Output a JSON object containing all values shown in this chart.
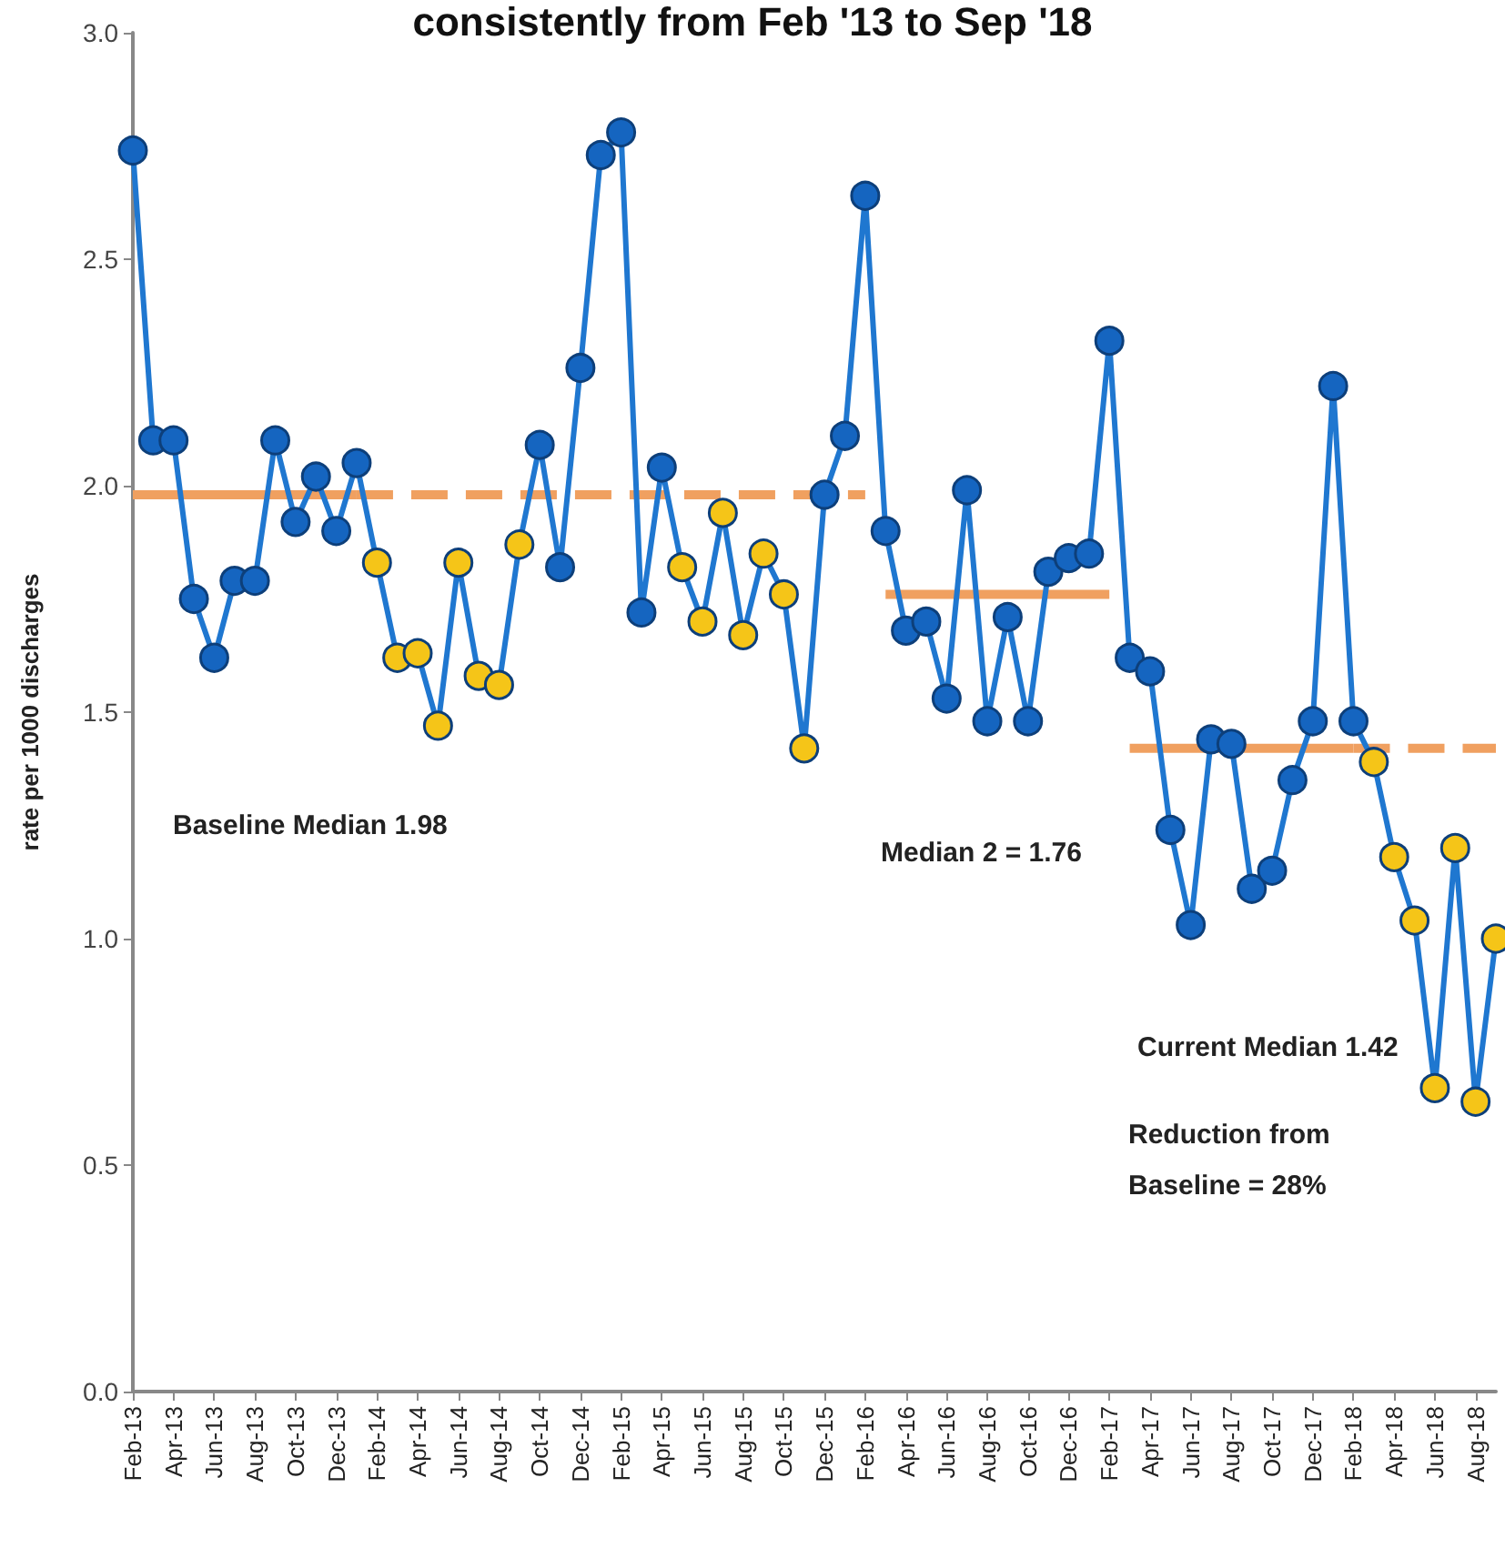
{
  "chart_data": {
    "type": "line",
    "title": "consistently from Feb '13 to Sep '18",
    "ylabel": "rate per 1000 discharges",
    "categories": [
      "Feb-13",
      null,
      "Apr-13",
      null,
      "Jun-13",
      null,
      "Aug-13",
      null,
      "Oct-13",
      null,
      "Dec-13",
      null,
      "Feb-14",
      null,
      "Apr-14",
      null,
      "Jun-14",
      null,
      "Aug-14",
      null,
      "Oct-14",
      null,
      "Dec-14",
      null,
      "Feb-15",
      null,
      "Apr-15",
      null,
      "Jun-15",
      null,
      "Aug-15",
      null,
      "Oct-15",
      null,
      "Dec-15",
      null,
      "Feb-16",
      null,
      "Apr-16",
      null,
      "Jun-16",
      null,
      "Aug-16",
      null,
      "Oct-16",
      null,
      "Dec-16",
      null,
      "Feb-17",
      null,
      "Apr-17",
      null,
      "Jun-17",
      null,
      "Aug-17",
      null,
      "Oct-17",
      null,
      "Dec-17",
      null,
      "Feb-18",
      null,
      "Apr-18",
      null,
      "Jun-18",
      null,
      "Aug-18",
      null
    ],
    "series": [
      {
        "color": "#1f77d0",
        "marker": "circle",
        "values": [
          2.74,
          2.1,
          2.1,
          1.75,
          1.62,
          1.79,
          1.79,
          2.1,
          1.92,
          2.02,
          1.9,
          2.05,
          1.83,
          1.62,
          1.63,
          1.47,
          1.83,
          1.58,
          1.56,
          1.87,
          2.09,
          1.82,
          2.26,
          2.73,
          2.78,
          1.72,
          2.04,
          1.82,
          1.7,
          1.94,
          1.67,
          1.85,
          1.76,
          1.42,
          1.98,
          2.11,
          2.64,
          1.9,
          1.68,
          1.7,
          1.53,
          1.99,
          1.48,
          1.71,
          1.48,
          1.81,
          1.84,
          1.85,
          2.32,
          1.62,
          1.59,
          1.24,
          1.03,
          1.44,
          1.43,
          1.11,
          1.15,
          1.35,
          1.48,
          2.22,
          1.48,
          1.39,
          1.18,
          1.04,
          0.67,
          1.2,
          0.64,
          1.0
        ],
        "colors": [
          "#1565c0",
          "#1565c0",
          "#1565c0",
          "#1565c0",
          "#1565c0",
          "#1565c0",
          "#1565c0",
          "#1565c0",
          "#1565c0",
          "#1565c0",
          "#1565c0",
          "#1565c0",
          "#f5c518",
          "#f5c518",
          "#f5c518",
          "#f5c518",
          "#f5c518",
          "#f5c518",
          "#f5c518",
          "#f5c518",
          "#1565c0",
          "#1565c0",
          "#1565c0",
          "#1565c0",
          "#1565c0",
          "#1565c0",
          "#1565c0",
          "#f5c518",
          "#f5c518",
          "#f5c518",
          "#f5c518",
          "#f5c518",
          "#f5c518",
          "#f5c518",
          "#1565c0",
          "#1565c0",
          "#1565c0",
          "#1565c0",
          "#1565c0",
          "#1565c0",
          "#1565c0",
          "#1565c0",
          "#1565c0",
          "#1565c0",
          "#1565c0",
          "#1565c0",
          "#1565c0",
          "#1565c0",
          "#1565c0",
          "#1565c0",
          "#1565c0",
          "#1565c0",
          "#1565c0",
          "#1565c0",
          "#1565c0",
          "#1565c0",
          "#1565c0",
          "#1565c0",
          "#1565c0",
          "#1565c0",
          "#1565c0",
          "#f5c518",
          "#f5c518",
          "#f5c518",
          "#f5c518",
          "#f5c518",
          "#f5c518",
          "#f5c518"
        ]
      },
      {
        "type": "line",
        "color": "#f0a060",
        "marker": "none",
        "line_style": "solid",
        "values": [
          1.98,
          1.98,
          1.98,
          1.98,
          1.98,
          1.98,
          1.98,
          1.98,
          1.98,
          1.98,
          1.98,
          1.98,
          null,
          null,
          null,
          null,
          null,
          null,
          null,
          null,
          null,
          null,
          null,
          null,
          null,
          null,
          null,
          null,
          null,
          null,
          null,
          null,
          null,
          null,
          null,
          null,
          null,
          null,
          null,
          null,
          null,
          null,
          null,
          null,
          null,
          null,
          null,
          null,
          null,
          null,
          null,
          null,
          null,
          null,
          null,
          null,
          null,
          null,
          null,
          null,
          null,
          null,
          null,
          null,
          null,
          null,
          null,
          null
        ]
      },
      {
        "type": "line",
        "color": "#f0a060",
        "marker": "none",
        "line_style": "dashed",
        "values": [
          null,
          null,
          null,
          null,
          null,
          null,
          null,
          null,
          null,
          null,
          null,
          1.98,
          1.98,
          1.98,
          1.98,
          1.98,
          1.98,
          1.98,
          1.98,
          1.98,
          1.98,
          1.98,
          1.98,
          1.98,
          1.98,
          1.98,
          1.98,
          1.98,
          1.98,
          1.98,
          1.98,
          1.98,
          1.98,
          1.98,
          1.98,
          1.98,
          1.98,
          null,
          null,
          null,
          null,
          null,
          null,
          null,
          null,
          null,
          null,
          null,
          null,
          null,
          null,
          null,
          null,
          null,
          null,
          null,
          null,
          null,
          null,
          null,
          null,
          null,
          null,
          null,
          null,
          null,
          null,
          null
        ]
      },
      {
        "type": "line",
        "color": "#f0a060",
        "marker": "none",
        "line_style": "solid",
        "values": [
          null,
          null,
          null,
          null,
          null,
          null,
          null,
          null,
          null,
          null,
          null,
          null,
          null,
          null,
          null,
          null,
          null,
          null,
          null,
          null,
          null,
          null,
          null,
          null,
          null,
          null,
          null,
          null,
          null,
          null,
          null,
          null,
          null,
          null,
          null,
          null,
          null,
          1.76,
          1.76,
          1.76,
          1.76,
          1.76,
          1.76,
          1.76,
          1.76,
          1.76,
          1.76,
          1.76,
          1.76,
          null,
          null,
          null,
          null,
          null,
          null,
          null,
          null,
          null,
          null,
          null,
          null,
          null,
          null,
          null,
          null,
          null,
          null,
          null
        ]
      },
      {
        "type": "line",
        "color": "#f0a060",
        "marker": "none",
        "line_style": "solid",
        "values": [
          null,
          null,
          null,
          null,
          null,
          null,
          null,
          null,
          null,
          null,
          null,
          null,
          null,
          null,
          null,
          null,
          null,
          null,
          null,
          null,
          null,
          null,
          null,
          null,
          null,
          null,
          null,
          null,
          null,
          null,
          null,
          null,
          null,
          null,
          null,
          null,
          null,
          null,
          null,
          null,
          null,
          null,
          null,
          null,
          null,
          null,
          null,
          null,
          null,
          1.42,
          1.42,
          1.42,
          1.42,
          1.42,
          1.42,
          1.42,
          1.42,
          1.42,
          1.42,
          1.42,
          1.42,
          null,
          null,
          null,
          null,
          null,
          null,
          null
        ]
      },
      {
        "type": "line",
        "color": "#f0a060",
        "marker": "none",
        "line_style": "dashed",
        "values": [
          null,
          null,
          null,
          null,
          null,
          null,
          null,
          null,
          null,
          null,
          null,
          null,
          null,
          null,
          null,
          null,
          null,
          null,
          null,
          null,
          null,
          null,
          null,
          null,
          null,
          null,
          null,
          null,
          null,
          null,
          null,
          null,
          null,
          null,
          null,
          null,
          null,
          null,
          null,
          null,
          null,
          null,
          null,
          null,
          null,
          null,
          null,
          null,
          null,
          null,
          null,
          null,
          null,
          null,
          null,
          null,
          null,
          null,
          null,
          null,
          1.42,
          1.42,
          1.42,
          1.42,
          1.42,
          1.42,
          1.42,
          1.42
        ]
      }
    ],
    "ylim": [
      0,
      3
    ],
    "yticks": [
      {
        "value": 0,
        "label": "0.0"
      },
      0.5,
      {
        "value": 1,
        "label": "1.0"
      },
      1.5,
      {
        "value": 2,
        "label": "2.0"
      },
      2.5,
      {
        "value": 3,
        "label": "3.0"
      }
    ],
    "annotations": [
      "Baseline Median 1.98",
      "Median 2 = 1.76",
      "Current Median 1.42",
      "Reduction from Baseline = 28%"
    ],
    "grid": false
  }
}
